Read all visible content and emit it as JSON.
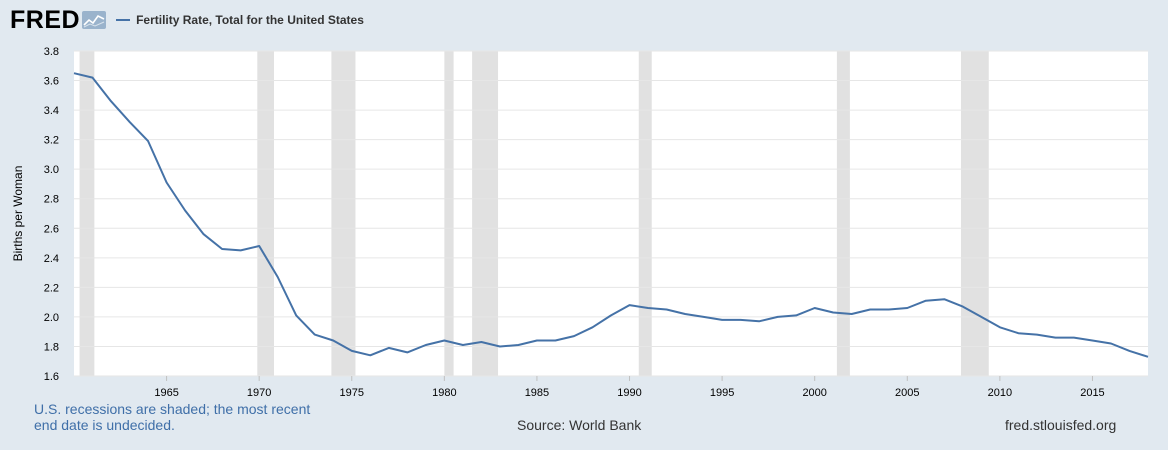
{
  "header": {
    "logo_text": "FRED",
    "series_title": "Fertility Rate, Total for the United States"
  },
  "footer": {
    "recession_note": "U.S. recessions are shaded; the most recent end date is undecided.",
    "source": "Source: World Bank",
    "site": "fred.stlouisfed.org"
  },
  "colors": {
    "line": "#4572a7",
    "recession": "#e1e1e1",
    "background": "#e1e9f0",
    "plot": "#ffffff"
  },
  "chart_data": {
    "type": "line",
    "title": "",
    "xlabel": "",
    "ylabel": "Births per Woman",
    "xlim": [
      1960,
      2018
    ],
    "ylim": [
      1.6,
      3.8
    ],
    "yticks": [
      "1.6",
      "1.8",
      "2.0",
      "2.2",
      "2.4",
      "2.6",
      "2.8",
      "3.0",
      "3.2",
      "3.4",
      "3.6",
      "3.8"
    ],
    "xticks": [
      "1965",
      "1970",
      "1975",
      "1980",
      "1985",
      "1990",
      "1995",
      "2000",
      "2005",
      "2010",
      "2015"
    ],
    "grid": true,
    "recessions": [
      [
        1960.3,
        1961.1
      ],
      [
        1969.9,
        1970.8
      ],
      [
        1973.9,
        1975.2
      ],
      [
        1980.0,
        1980.5
      ],
      [
        1981.5,
        1982.9
      ],
      [
        1990.5,
        1991.2
      ],
      [
        2001.2,
        2001.9
      ],
      [
        2007.9,
        2009.4
      ]
    ],
    "series": [
      {
        "name": "Fertility Rate, Total for the United States",
        "x": [
          1960,
          1961,
          1962,
          1963,
          1964,
          1965,
          1966,
          1967,
          1968,
          1969,
          1970,
          1971,
          1972,
          1973,
          1974,
          1975,
          1976,
          1977,
          1978,
          1979,
          1980,
          1981,
          1982,
          1983,
          1984,
          1985,
          1986,
          1987,
          1988,
          1989,
          1990,
          1991,
          1992,
          1993,
          1994,
          1995,
          1996,
          1997,
          1998,
          1999,
          2000,
          2001,
          2002,
          2003,
          2004,
          2005,
          2006,
          2007,
          2008,
          2009,
          2010,
          2011,
          2012,
          2013,
          2014,
          2015,
          2016,
          2017,
          2018
        ],
        "values": [
          3.65,
          3.62,
          3.46,
          3.32,
          3.19,
          2.91,
          2.72,
          2.56,
          2.46,
          2.45,
          2.48,
          2.27,
          2.01,
          1.88,
          1.84,
          1.77,
          1.74,
          1.79,
          1.76,
          1.81,
          1.84,
          1.81,
          1.83,
          1.8,
          1.81,
          1.84,
          1.84,
          1.87,
          1.93,
          2.01,
          2.08,
          2.06,
          2.05,
          2.02,
          2.0,
          1.98,
          1.98,
          1.97,
          2.0,
          2.01,
          2.06,
          2.03,
          2.02,
          2.05,
          2.05,
          2.06,
          2.11,
          2.12,
          2.07,
          2.0,
          1.93,
          1.89,
          1.88,
          1.86,
          1.86,
          1.84,
          1.82,
          1.77,
          1.73
        ]
      }
    ]
  }
}
